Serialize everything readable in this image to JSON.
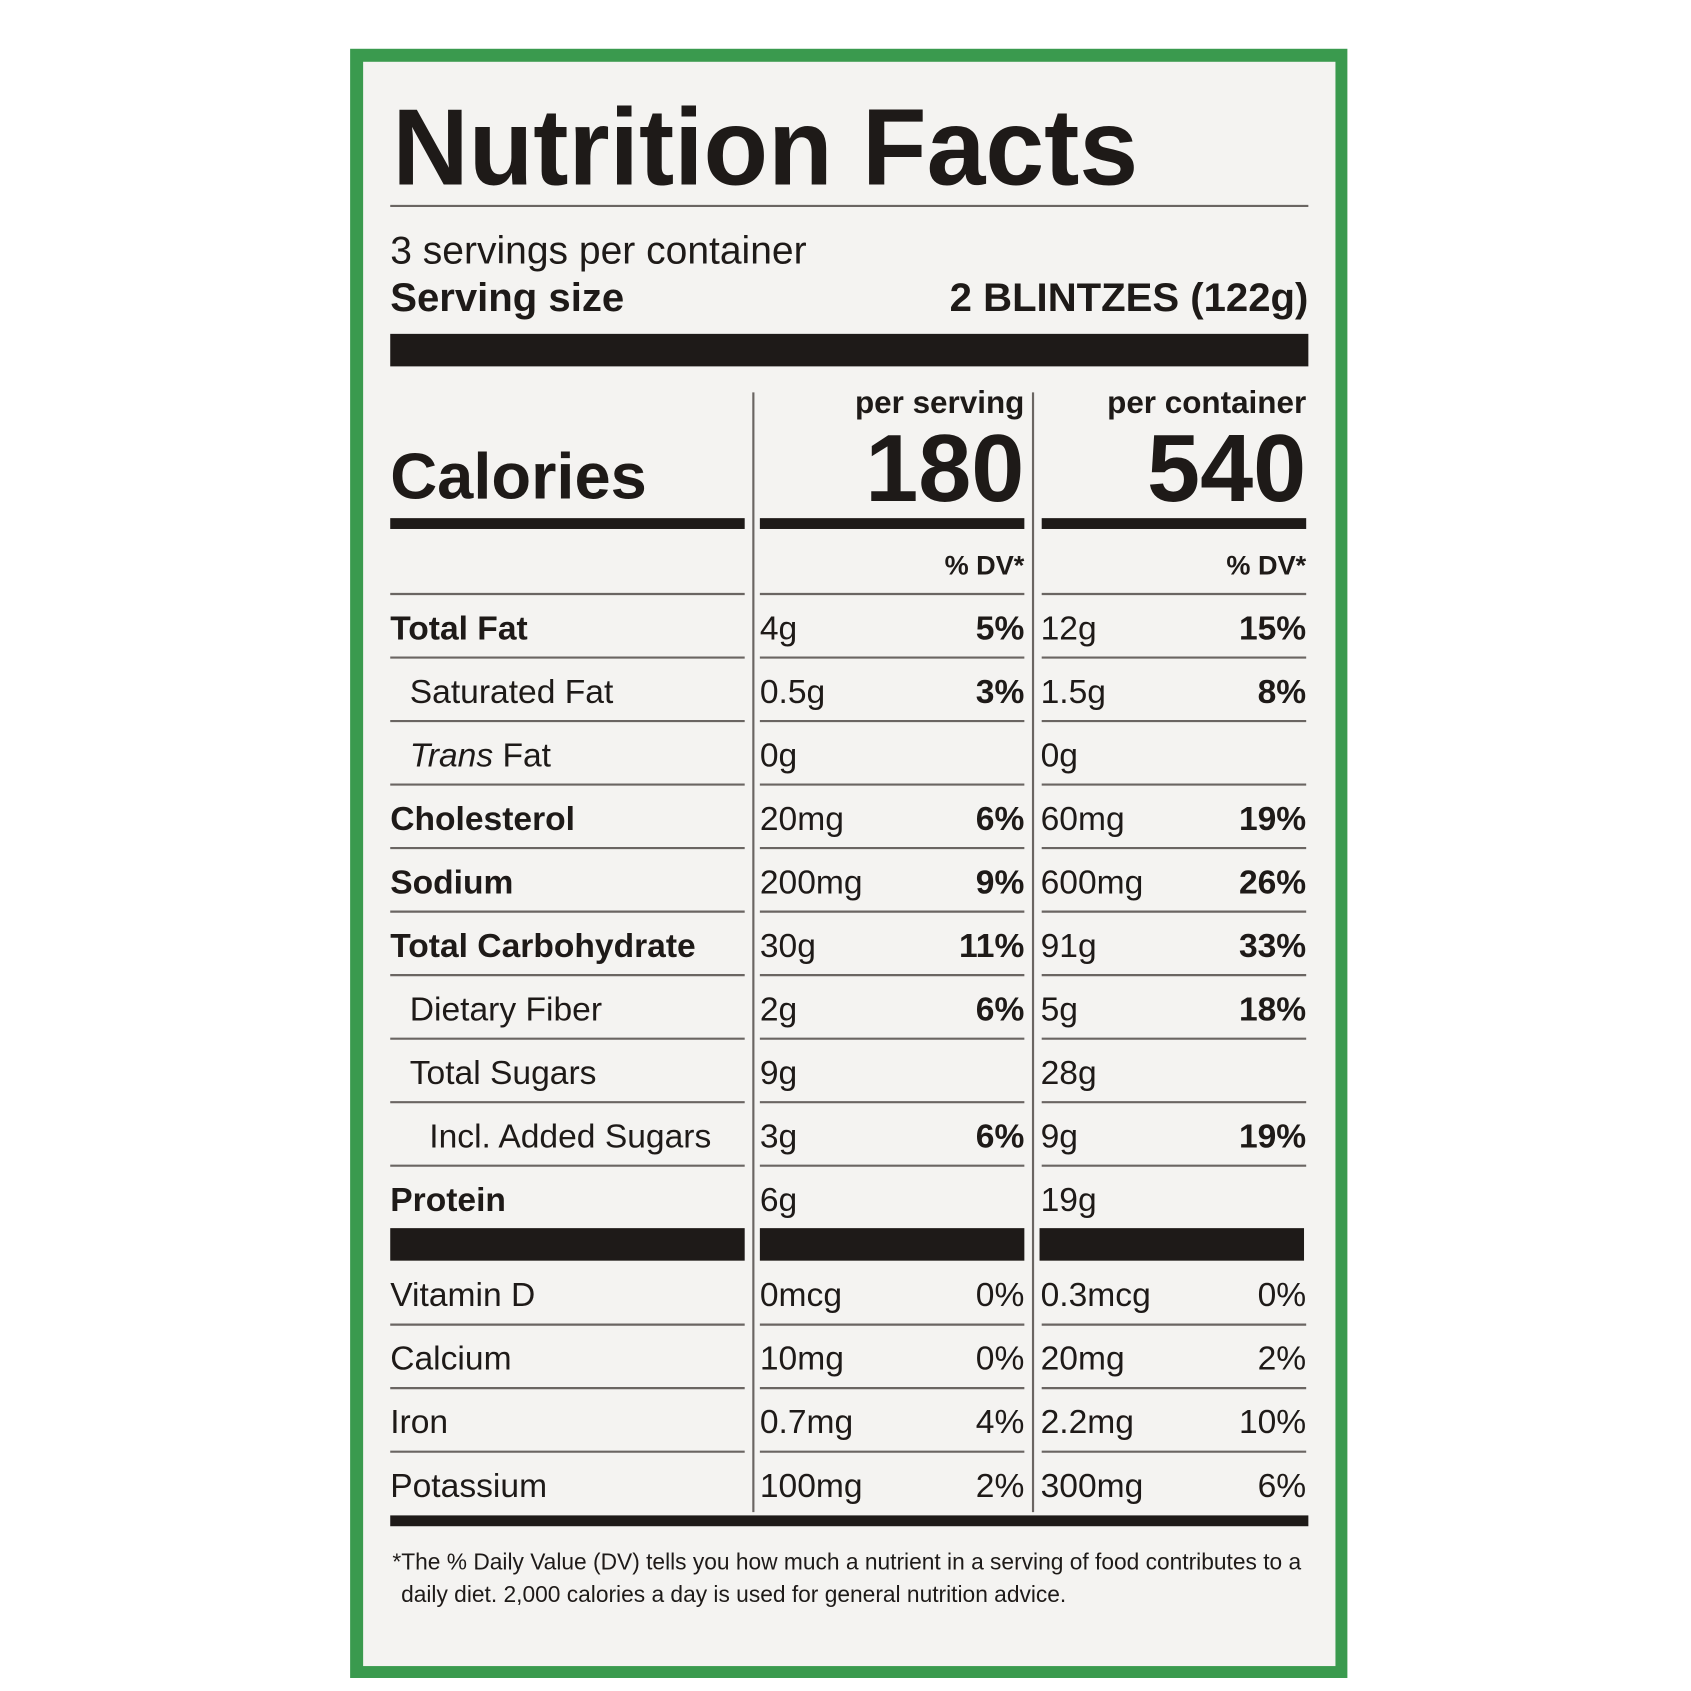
{
  "title": "Nutrition Facts",
  "servings_per_container": "3 servings per container",
  "serving_size_label": "Serving size",
  "serving_size_value": "2 BLINTZES (122g)",
  "calories_label": "Calories",
  "columns": [
    {
      "header": "per serving",
      "calories": "180",
      "dv_header": "% DV*"
    },
    {
      "header": "per container",
      "calories": "540",
      "dv_header": "% DV*"
    }
  ],
  "nutrients": [
    {
      "label": "Total Fat",
      "serving": {
        "amount": "4g",
        "dv": "5%"
      },
      "container": {
        "amount": "12g",
        "dv": "15%"
      }
    },
    {
      "label": "Saturated Fat",
      "serving": {
        "amount": "0.5g",
        "dv": "3%"
      },
      "container": {
        "amount": "1.5g",
        "dv": "8%"
      }
    },
    {
      "label_italic": "Trans",
      "label": " Fat",
      "serving": {
        "amount": "0g"
      },
      "container": {
        "amount": "0g"
      }
    },
    {
      "label": "Cholesterol",
      "serving": {
        "amount": "20mg",
        "dv": "6%"
      },
      "container": {
        "amount": "60mg",
        "dv": "19%"
      }
    },
    {
      "label": "Sodium",
      "serving": {
        "amount": "200mg",
        "dv": "9%"
      },
      "container": {
        "amount": "600mg",
        "dv": "26%"
      }
    },
    {
      "label": "Total Carbohydrate",
      "serving": {
        "amount": "30g",
        "dv": "11%"
      },
      "container": {
        "amount": "91g",
        "dv": "33%"
      }
    },
    {
      "label": "Dietary Fiber",
      "serving": {
        "amount": "2g",
        "dv": "6%"
      },
      "container": {
        "amount": "5g",
        "dv": "18%"
      }
    },
    {
      "label": "Total Sugars",
      "serving": {
        "amount": "9g"
      },
      "container": {
        "amount": "28g"
      }
    },
    {
      "label": "Incl. Added Sugars",
      "serving": {
        "amount": "3g",
        "dv": "6%"
      },
      "container": {
        "amount": "9g",
        "dv": "19%"
      }
    },
    {
      "label": "Protein",
      "serving": {
        "amount": "6g"
      },
      "container": {
        "amount": "19g"
      }
    }
  ],
  "vitamins": [
    {
      "label": "Vitamin D",
      "serving": {
        "amount": "0mcg",
        "dv": "0%"
      },
      "container": {
        "amount": "0.3mcg",
        "dv": "0%"
      }
    },
    {
      "label": "Calcium",
      "serving": {
        "amount": "10mg",
        "dv": "0%"
      },
      "container": {
        "amount": "20mg",
        "dv": "2%"
      }
    },
    {
      "label": "Iron",
      "serving": {
        "amount": "0.7mg",
        "dv": "4%"
      },
      "container": {
        "amount": "2.2mg",
        "dv": "10%"
      }
    },
    {
      "label": "Potassium",
      "serving": {
        "amount": "100mg",
        "dv": "2%"
      },
      "container": {
        "amount": "300mg",
        "dv": "6%"
      }
    }
  ],
  "footnote": [
    "*The % Daily Value (DV) tells you how much a nutrient in a serving of food contributes to a",
    "daily diet. 2,000 calories a day is used for general nutrition advice."
  ]
}
